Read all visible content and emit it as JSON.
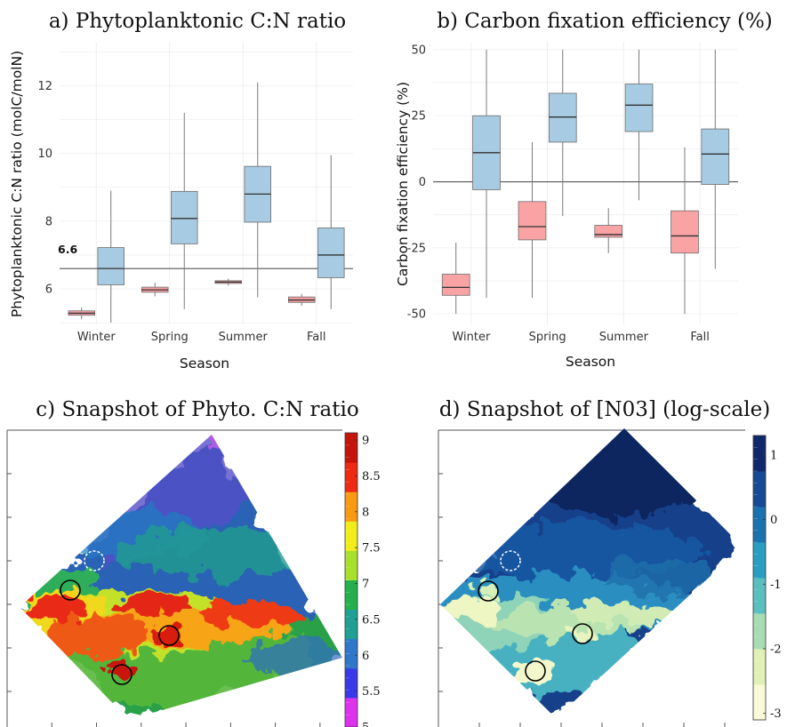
{
  "chart_data": [
    {
      "id": "a",
      "type": "box",
      "title": "a) Phytoplanktonic C:N ratio",
      "xlabel": "Season",
      "ylabel": "Phytoplanktonic C:N ratio (molC/molN)",
      "categories": [
        "Winter",
        "Spring",
        "Summer",
        "Fall"
      ],
      "yticks": [
        6,
        8,
        10,
        12
      ],
      "ylim": [
        4.95,
        13.3
      ],
      "reference_line": {
        "value": 6.6,
        "label": "6.6"
      },
      "grid": true,
      "series": [
        {
          "color": "#f9a3a4",
          "boxes": [
            {
              "whislo": 5.1,
              "q1": 5.22,
              "med": 5.28,
              "q3": 5.35,
              "whishi": 5.45
            },
            {
              "whislo": 5.78,
              "q1": 5.9,
              "med": 5.97,
              "q3": 6.05,
              "whishi": 6.18
            },
            {
              "whislo": 6.1,
              "q1": 6.16,
              "med": 6.2,
              "q3": 6.24,
              "whishi": 6.3
            },
            {
              "whislo": 5.5,
              "q1": 5.6,
              "med": 5.67,
              "q3": 5.76,
              "whishi": 5.85
            }
          ]
        },
        {
          "color": "#a6cbe2",
          "boxes": [
            {
              "whislo": 5.0,
              "q1": 6.12,
              "med": 6.6,
              "q3": 7.22,
              "whishi": 8.9
            },
            {
              "whislo": 5.4,
              "q1": 7.33,
              "med": 8.08,
              "q3": 8.88,
              "whishi": 11.2
            },
            {
              "whislo": 5.75,
              "q1": 7.97,
              "med": 8.8,
              "q3": 9.62,
              "whishi": 12.1
            },
            {
              "whislo": 5.4,
              "q1": 6.33,
              "med": 7.0,
              "q3": 7.8,
              "whishi": 9.95
            }
          ]
        }
      ]
    },
    {
      "id": "b",
      "type": "box",
      "title": "b) Carbon fixation efficiency (%)",
      "xlabel": "Season",
      "ylabel": "Carbon fixation efficiency (%)",
      "categories": [
        "Winter",
        "Spring",
        "Summer",
        "Fall"
      ],
      "yticks": [
        -50,
        -25,
        0,
        25,
        50
      ],
      "ylim": [
        -54,
        53
      ],
      "reference_line": {
        "value": 0,
        "label": ""
      },
      "grid": true,
      "series": [
        {
          "color": "#f9a3a4",
          "boxes": [
            {
              "whislo": -50,
              "q1": -43,
              "med": -40,
              "q3": -35,
              "whishi": -23
            },
            {
              "whislo": -44,
              "q1": -22,
              "med": -17,
              "q3": -7.5,
              "whishi": 15
            },
            {
              "whislo": -27,
              "q1": -21,
              "med": -20,
              "q3": -16.5,
              "whishi": -10
            },
            {
              "whislo": -50,
              "q1": -27,
              "med": -20.5,
              "q3": -11,
              "whishi": 13
            }
          ]
        },
        {
          "color": "#a6cbe2",
          "boxes": [
            {
              "whislo": -44,
              "q1": -3,
              "med": 11,
              "q3": 25,
              "whishi": 50
            },
            {
              "whislo": -13,
              "q1": 15,
              "med": 24.5,
              "q3": 33.5,
              "whishi": 50
            },
            {
              "whislo": -7,
              "q1": 19,
              "med": 29,
              "q3": 37,
              "whishi": 50
            },
            {
              "whislo": -33,
              "q1": -1,
              "med": 10.5,
              "q3": 20,
              "whishi": 50
            }
          ]
        }
      ]
    },
    {
      "id": "c",
      "type": "heatmap",
      "title": "c) Snapshot of Phyto. C:N ratio",
      "colorbar": {
        "min": 5,
        "max": 9.1,
        "labels": [
          "9",
          "8.5",
          "8",
          "7.5",
          "7",
          "6.5",
          "6",
          "5.5",
          "5"
        ],
        "label_values": [
          9,
          8.5,
          8,
          7.5,
          7,
          6.5,
          6,
          5.5,
          5
        ],
        "colors": [
          "#dd33ee",
          "#3939e8",
          "#2f78c9",
          "#1fa092",
          "#26b04d",
          "#a8e02c",
          "#f1ec1c",
          "#f89a12",
          "#ee2a12",
          "#c4140c"
        ]
      },
      "markers": [
        "dashed-circle",
        "circle",
        "circle",
        "circle"
      ]
    },
    {
      "id": "d",
      "type": "heatmap",
      "title": "d) Snapshot of [N03] (log-scale)",
      "colorbar": {
        "min": -3.1,
        "max": 1.3,
        "labels": [
          "1",
          "0",
          "-1",
          "-2",
          "-3"
        ],
        "label_values": [
          1,
          0,
          -1,
          -2,
          -3
        ],
        "colors": [
          "#fbfad8",
          "#e1f1b6",
          "#a9dbb5",
          "#5bbfc1",
          "#2a9dc2",
          "#1a72ae",
          "#174a94",
          "#10296c"
        ]
      },
      "markers": [
        "dashed-circle",
        "circle",
        "circle",
        "circle"
      ]
    }
  ]
}
